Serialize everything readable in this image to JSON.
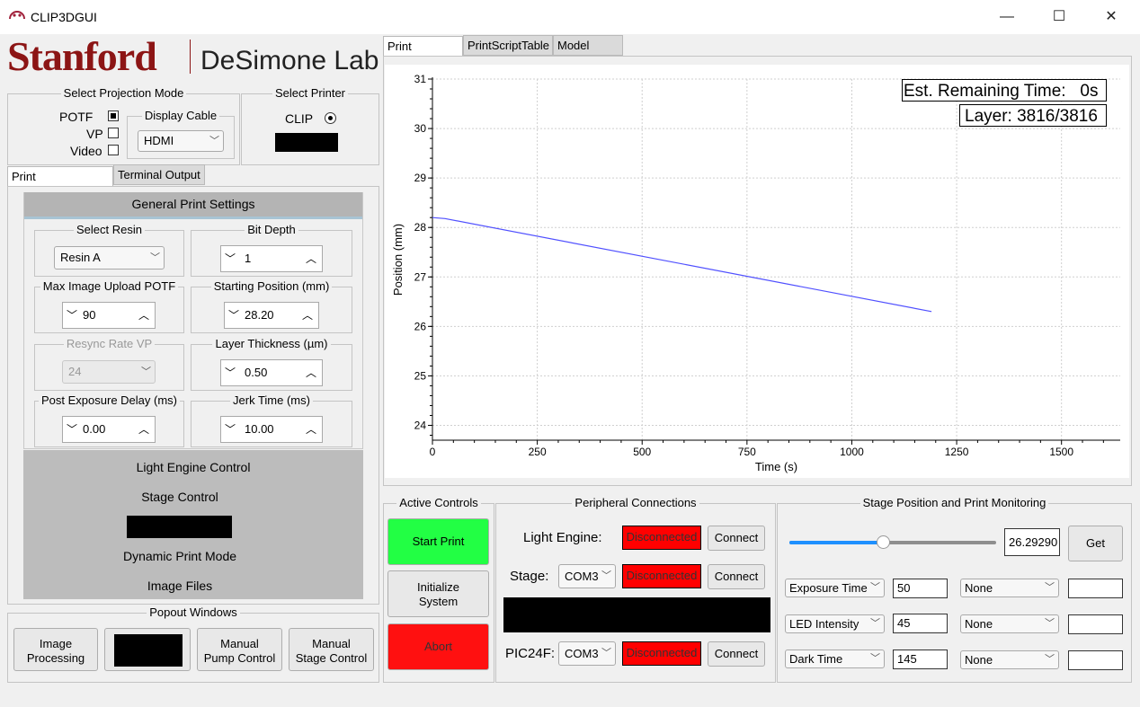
{
  "window": {
    "title": "CLIP3DGUI",
    "minimize": "—",
    "maximize": "☐",
    "close": "✕"
  },
  "logo": {
    "stanford": "Stanford",
    "lab": "DeSimone Lab"
  },
  "projection": {
    "title": "Select Projection Mode",
    "options": [
      {
        "label": "POTF",
        "checked": true
      },
      {
        "label": "VP",
        "checked": false
      },
      {
        "label": "Video",
        "checked": false
      }
    ],
    "display_cable": {
      "title": "Display Cable",
      "value": "HDMI"
    }
  },
  "printer": {
    "title": "Select Printer",
    "option": "CLIP"
  },
  "left_tabs": [
    {
      "label": "Print Customization",
      "active": true
    },
    {
      "label": "Terminal Output",
      "active": false
    }
  ],
  "settings": {
    "header": "General Print Settings",
    "select_resin": {
      "title": "Select Resin",
      "value": "Resin A"
    },
    "bit_depth": {
      "title": "Bit Depth",
      "value": "1"
    },
    "max_image_upload": {
      "title": "Max Image Upload POTF",
      "value": "90"
    },
    "starting_position": {
      "title": "Starting Position (mm)",
      "value": "28.20"
    },
    "resync_rate": {
      "title": "Resync Rate VP",
      "value": "24"
    },
    "layer_thickness": {
      "title": "Layer Thickness (µm)",
      "value": "0.50"
    },
    "post_exposure_delay": {
      "title": "Post Exposure Delay (ms)",
      "value": "0.00"
    },
    "jerk_time": {
      "title": "Jerk Time (ms)",
      "value": "10.00"
    },
    "sections": [
      "Light Engine Control",
      "Stage Control",
      "Dynamic Print Mode",
      "Image Files"
    ]
  },
  "popout": {
    "title": "Popout Windows",
    "image_processing": "Image\nProcessing",
    "manual_pump": "Manual\nPump Control",
    "manual_stage": "Manual\nStage Control"
  },
  "right_tabs": [
    {
      "label": "Print Progress",
      "active": true
    },
    {
      "label": "PrintScriptTable",
      "active": false
    },
    {
      "label": "Model Slicer",
      "active": false
    }
  ],
  "chart_data": {
    "type": "line",
    "xlabel": "Time (s)",
    "ylabel": "Position (mm)",
    "xlim": [
      0,
      1640
    ],
    "ylim": [
      23.7,
      31
    ],
    "xticks": [
      0,
      250,
      500,
      750,
      1000,
      1250,
      1500
    ],
    "yticks": [
      24,
      25,
      26,
      27,
      28,
      29,
      30,
      31
    ],
    "grid": true,
    "series": [
      {
        "color": "#5050ff",
        "x": [
          0,
          30,
          1190
        ],
        "y": [
          28.2,
          28.18,
          26.3
        ]
      }
    ],
    "annotations": [
      "Est. Remaining Time:   0s",
      "Layer: 3816/3816"
    ]
  },
  "active_controls": {
    "title": "Active Controls",
    "start": "Start Print",
    "init": "Initialize\nSystem",
    "abort": "Abort",
    "start_color": "#22ff44",
    "abort_color": "#ff1010"
  },
  "peripheral": {
    "title": "Peripheral Connections",
    "rows": [
      {
        "label": "Light Engine:",
        "port": "",
        "status": "Disconnected",
        "button": "Connect"
      },
      {
        "label": "Stage:",
        "port": "COM3",
        "status": "Disconnected",
        "button": "Connect"
      },
      {
        "label": "PIC24F:",
        "port": "COM3",
        "status": "Disconnected",
        "button": "Connect"
      }
    ]
  },
  "stage_monitor": {
    "title": "Stage Position and Print Monitoring",
    "slider_level": 0.45,
    "position": "26.29290",
    "get": "Get",
    "rows": [
      {
        "param": "Exposure Time",
        "value": "50",
        "mode": "None",
        "extra": ""
      },
      {
        "param": "LED Intensity",
        "value": "45",
        "mode": "None",
        "extra": ""
      },
      {
        "param": "Dark Time",
        "value": "145",
        "mode": "None",
        "extra": ""
      }
    ]
  }
}
